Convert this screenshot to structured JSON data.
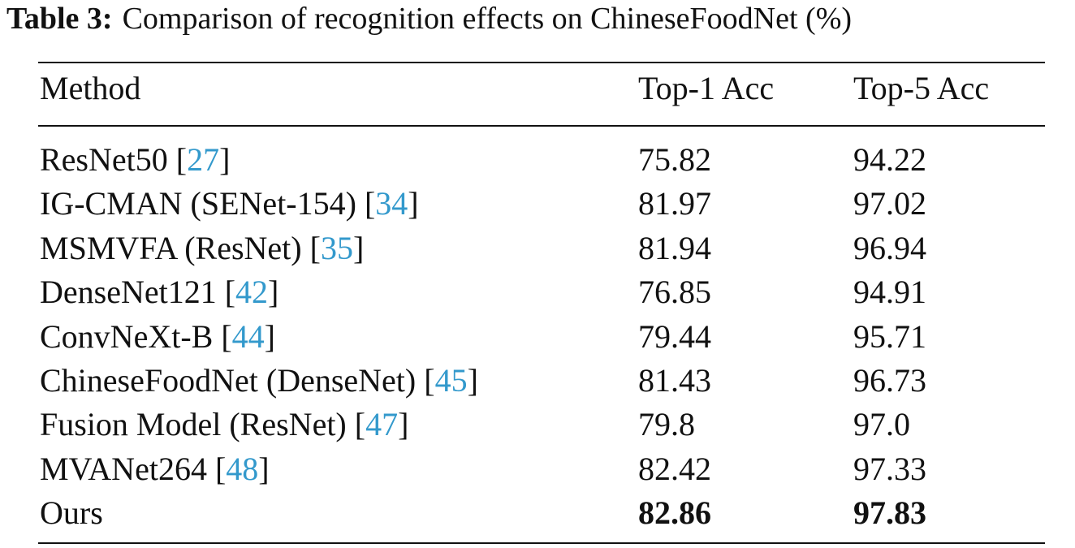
{
  "caption": {
    "label": "Table 3:",
    "text": "Comparison of recognition effects on ChineseFoodNet (%)"
  },
  "header": {
    "method": "Method",
    "top1": "Top-1 Acc",
    "top5": "Top-5 Acc"
  },
  "rows": [
    {
      "method": "ResNet50",
      "ref": "27",
      "top1": "75.82",
      "top5": "94.22"
    },
    {
      "method": "IG-CMAN (SENet-154)",
      "ref": "34",
      "top1": "81.97",
      "top5": "97.02"
    },
    {
      "method": "MSMVFA (ResNet)",
      "ref": "35",
      "top1": "81.94",
      "top5": "96.94"
    },
    {
      "method": "DenseNet121",
      "ref": "42",
      "top1": "76.85",
      "top5": "94.91"
    },
    {
      "method": "ConvNeXt-B",
      "ref": "44",
      "top1": "79.44",
      "top5": "95.71"
    },
    {
      "method": "ChineseFoodNet (DenseNet)",
      "ref": "45",
      "top1": "81.43",
      "top5": "96.73"
    },
    {
      "method": "Fusion Model (ResNet)",
      "ref": "47",
      "top1": "79.8",
      "top5": "97.0"
    },
    {
      "method": "MVANet264",
      "ref": "48",
      "top1": "82.42",
      "top5": "97.33"
    },
    {
      "method": "Ours",
      "ref": "",
      "top1": "82.86",
      "top5": "97.83",
      "bold": true
    }
  ],
  "colors": {
    "citation": "#3399cc",
    "text": "#111111"
  }
}
